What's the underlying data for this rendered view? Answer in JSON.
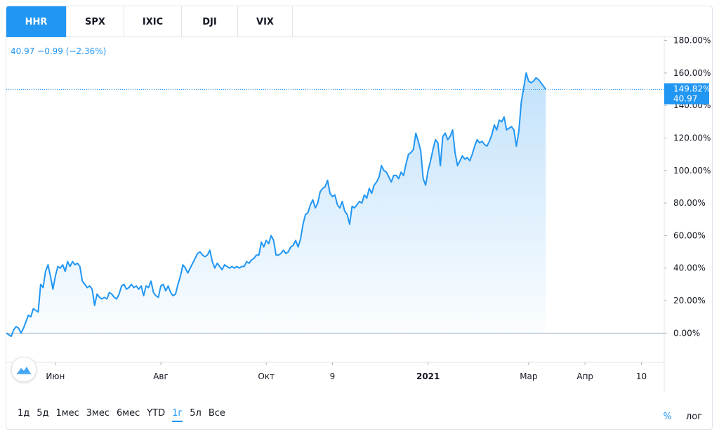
{
  "tabs": [
    {
      "label": "HHR",
      "active": true
    },
    {
      "label": "SPX",
      "active": false
    },
    {
      "label": "IXIC",
      "active": false
    },
    {
      "label": "DJI",
      "active": false
    },
    {
      "label": "VIX",
      "active": false
    }
  ],
  "legend": {
    "text": "40.97 −0.99 (−2.36%)"
  },
  "last_value": {
    "percent": "149.82%",
    "price": "40.97"
  },
  "periods": [
    {
      "label": "1д",
      "active": false
    },
    {
      "label": "5д",
      "active": false
    },
    {
      "label": "1мес",
      "active": false
    },
    {
      "label": "3мес",
      "active": false
    },
    {
      "label": "6мес",
      "active": false
    },
    {
      "label": "YTD",
      "active": false
    },
    {
      "label": "1г",
      "active": true
    },
    {
      "label": "5л",
      "active": false
    },
    {
      "label": "Все",
      "active": false
    }
  ],
  "scale_toggles": [
    {
      "label": "%",
      "active": true
    },
    {
      "label": "лог",
      "active": false
    }
  ],
  "colors": {
    "accent": "#2196f3",
    "line": "#2196f3",
    "area_top": "#bbdefb",
    "area_bottom": "#ffffff"
  },
  "icons": {
    "logo": "tradingview-cloud-icon"
  },
  "chart_data": {
    "type": "area",
    "ylim": [
      -18,
      182
    ],
    "yticks": [
      0,
      20,
      40,
      60,
      80,
      100,
      120,
      140,
      160,
      180
    ],
    "ytick_labels": [
      "0.00%",
      "20.00%",
      "40.00%",
      "60.00%",
      "80.00%",
      "100.00%",
      "120.00%",
      "140.00%",
      "160.00%",
      "180.00%"
    ],
    "xlim": [
      0,
      262
    ],
    "xticks": [
      {
        "x": 20,
        "label": "Июн",
        "bold": false
      },
      {
        "x": 63,
        "label": "Авг",
        "bold": false
      },
      {
        "x": 106,
        "label": "Окт",
        "bold": false
      },
      {
        "x": 133,
        "label": "9",
        "bold": false
      },
      {
        "x": 172,
        "label": "2021",
        "bold": true
      },
      {
        "x": 213,
        "label": "Мар",
        "bold": false
      },
      {
        "x": 236,
        "label": "Апр",
        "bold": false
      },
      {
        "x": 259,
        "label": "10",
        "bold": false
      }
    ],
    "series": [
      {
        "values": [
          0,
          -1,
          -2,
          2,
          4,
          3,
          0,
          3,
          7,
          11,
          10,
          15,
          14,
          13,
          30,
          28,
          38,
          42,
          35,
          27,
          35,
          41,
          40,
          42,
          38,
          44,
          41,
          44,
          42,
          43,
          41,
          32,
          30,
          28,
          29,
          27,
          17,
          24,
          22,
          21,
          22,
          21,
          25,
          24,
          22,
          21,
          24,
          29,
          30,
          27,
          28,
          30,
          28,
          29,
          27,
          29,
          23,
          29,
          28,
          32,
          25,
          23,
          22,
          29,
          30,
          26,
          29,
          25,
          23,
          24,
          30,
          35,
          42,
          40,
          37,
          40,
          43,
          46,
          49,
          50,
          48,
          47,
          48,
          51,
          44,
          40,
          43,
          41,
          39,
          42,
          41,
          40,
          41,
          40,
          41,
          40,
          41,
          41,
          44,
          43,
          45,
          46,
          48,
          48,
          56,
          53,
          57,
          55,
          60,
          57,
          48,
          48,
          49,
          51,
          49,
          50,
          53,
          54,
          57,
          53,
          58,
          67,
          73,
          74,
          79,
          82,
          77,
          80,
          87,
          89,
          90,
          94,
          86,
          84,
          85,
          79,
          77,
          81,
          75,
          73,
          67,
          78,
          77,
          79,
          81,
          80,
          85,
          83,
          89,
          86,
          91,
          93,
          96,
          103,
          100,
          99,
          96,
          93,
          97,
          97,
          95,
          99,
          97,
          104,
          110,
          111,
          113,
          123,
          118,
          112,
          95,
          91,
          100,
          106,
          113,
          119,
          117,
          103,
          121,
          123,
          119,
          121,
          125,
          111,
          103,
          106,
          109,
          107,
          108,
          106,
          110,
          115,
          119,
          117,
          118,
          116,
          115,
          118,
          122,
          128,
          125,
          131,
          130,
          133,
          125,
          126,
          127,
          125,
          115,
          124,
          142,
          151,
          160,
          155,
          154,
          155,
          157,
          156,
          154,
          152,
          149.82
        ]
      }
    ]
  }
}
